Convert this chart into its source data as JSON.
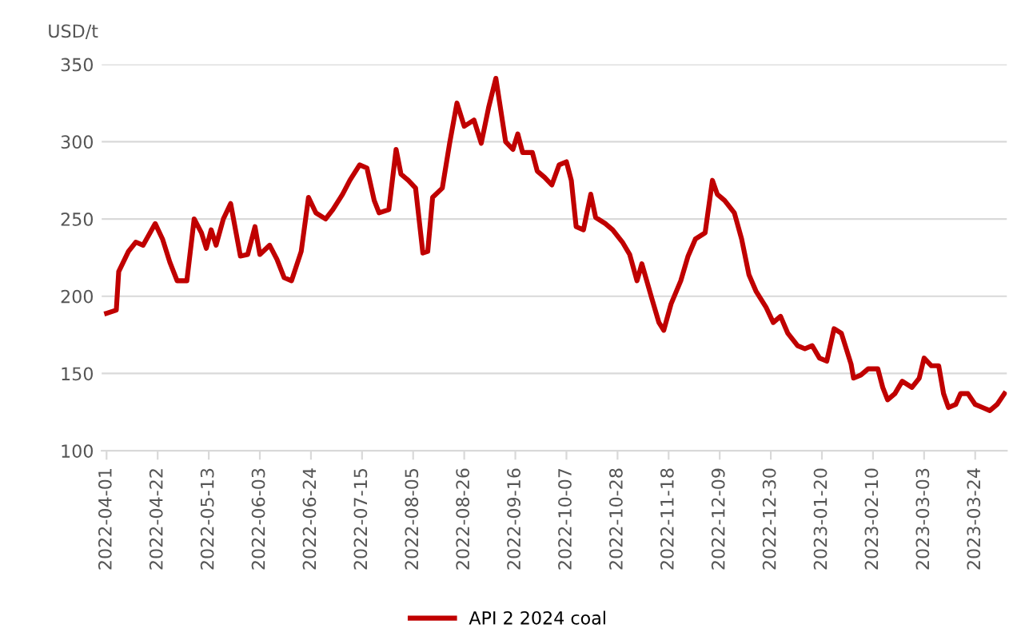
{
  "chart_data": {
    "type": "line",
    "ylabel": "USD/t",
    "x": [
      "2022-04-01",
      "2022-04-05",
      "2022-04-06",
      "2022-04-10",
      "2022-04-13",
      "2022-04-16",
      "2022-04-21",
      "2022-04-24",
      "2022-04-27",
      "2022-04-30",
      "2022-05-04",
      "2022-05-07",
      "2022-05-10",
      "2022-05-12",
      "2022-05-14",
      "2022-05-16",
      "2022-05-19",
      "2022-05-22",
      "2022-05-26",
      "2022-05-29",
      "2022-06-01",
      "2022-06-03",
      "2022-06-07",
      "2022-06-10",
      "2022-06-13",
      "2022-06-16",
      "2022-06-20",
      "2022-06-23",
      "2022-06-26",
      "2022-06-30",
      "2022-07-03",
      "2022-07-07",
      "2022-07-10",
      "2022-07-14",
      "2022-07-17",
      "2022-07-20",
      "2022-07-22",
      "2022-07-26",
      "2022-07-29",
      "2022-07-31",
      "2022-08-03",
      "2022-08-06",
      "2022-08-09",
      "2022-08-11",
      "2022-08-13",
      "2022-08-17",
      "2022-08-20",
      "2022-08-23",
      "2022-08-26",
      "2022-08-30",
      "2022-09-02",
      "2022-09-05",
      "2022-09-08",
      "2022-09-12",
      "2022-09-15",
      "2022-09-17",
      "2022-09-19",
      "2022-09-23",
      "2022-09-25",
      "2022-09-28",
      "2022-10-01",
      "2022-10-04",
      "2022-10-07",
      "2022-10-09",
      "2022-10-11",
      "2022-10-14",
      "2022-10-17",
      "2022-10-19",
      "2022-10-23",
      "2022-10-26",
      "2022-10-30",
      "2022-11-02",
      "2022-11-05",
      "2022-11-07",
      "2022-11-11",
      "2022-11-14",
      "2022-11-16",
      "2022-11-19",
      "2022-11-23",
      "2022-11-26",
      "2022-11-29",
      "2022-12-03",
      "2022-12-06",
      "2022-12-08",
      "2022-12-11",
      "2022-12-15",
      "2022-12-18",
      "2022-12-21",
      "2022-12-24",
      "2022-12-28",
      "2022-12-31",
      "2023-01-03",
      "2023-01-06",
      "2023-01-10",
      "2023-01-13",
      "2023-01-16",
      "2023-01-19",
      "2023-01-22",
      "2023-01-25",
      "2023-01-28",
      "2023-02-01",
      "2023-02-02",
      "2023-02-05",
      "2023-02-08",
      "2023-02-12",
      "2023-02-14",
      "2023-02-16",
      "2023-02-19",
      "2023-02-22",
      "2023-02-26",
      "2023-03-01",
      "2023-03-03",
      "2023-03-06",
      "2023-03-09",
      "2023-03-11",
      "2023-03-13",
      "2023-03-16",
      "2023-03-18",
      "2023-03-21",
      "2023-03-24",
      "2023-03-27",
      "2023-03-30",
      "2023-04-02",
      "2023-04-05"
    ],
    "series": [
      {
        "name": "API 2 2024 coal",
        "color": "#c00000",
        "values": [
          189,
          191,
          216,
          229,
          235,
          233,
          247,
          237,
          222,
          210,
          210,
          250,
          241,
          231,
          243,
          233,
          250,
          260,
          226,
          227,
          245,
          227,
          233,
          224,
          212,
          210,
          229,
          264,
          254,
          250,
          256,
          266,
          275,
          285,
          283,
          262,
          254,
          256,
          295,
          279,
          275,
          270,
          228,
          229,
          264,
          270,
          299,
          325,
          310,
          314,
          299,
          322,
          341,
          300,
          295,
          305,
          293,
          293,
          281,
          277,
          272,
          285,
          287,
          275,
          245,
          243,
          266,
          251,
          247,
          243,
          235,
          227,
          210,
          221,
          199,
          183,
          178,
          195,
          210,
          226,
          237,
          241,
          275,
          266,
          262,
          254,
          237,
          214,
          203,
          193,
          183,
          187,
          176,
          168,
          166,
          168,
          160,
          158,
          179,
          176,
          156,
          147,
          149,
          153,
          153,
          141,
          133,
          137,
          145,
          141,
          147,
          160,
          155,
          155,
          137,
          128,
          130,
          137,
          137,
          130,
          128,
          126,
          130,
          137
        ]
      }
    ],
    "xlim": [
      "2022-03-30",
      "2023-04-06"
    ],
    "xticks": [
      "2022-04-01",
      "2022-04-22",
      "2022-05-13",
      "2022-06-03",
      "2022-06-24",
      "2022-07-15",
      "2022-08-05",
      "2022-08-26",
      "2022-09-16",
      "2022-10-07",
      "2022-10-28",
      "2022-11-18",
      "2022-12-09",
      "2022-12-30",
      "2023-01-20",
      "2023-02-10",
      "2023-03-03",
      "2023-03-24"
    ],
    "ylim": [
      100,
      350
    ],
    "yticks": [
      100,
      150,
      200,
      250,
      300,
      350
    ],
    "grid": "y",
    "legend": "bottom",
    "marker": "none",
    "line_style": "solid"
  }
}
